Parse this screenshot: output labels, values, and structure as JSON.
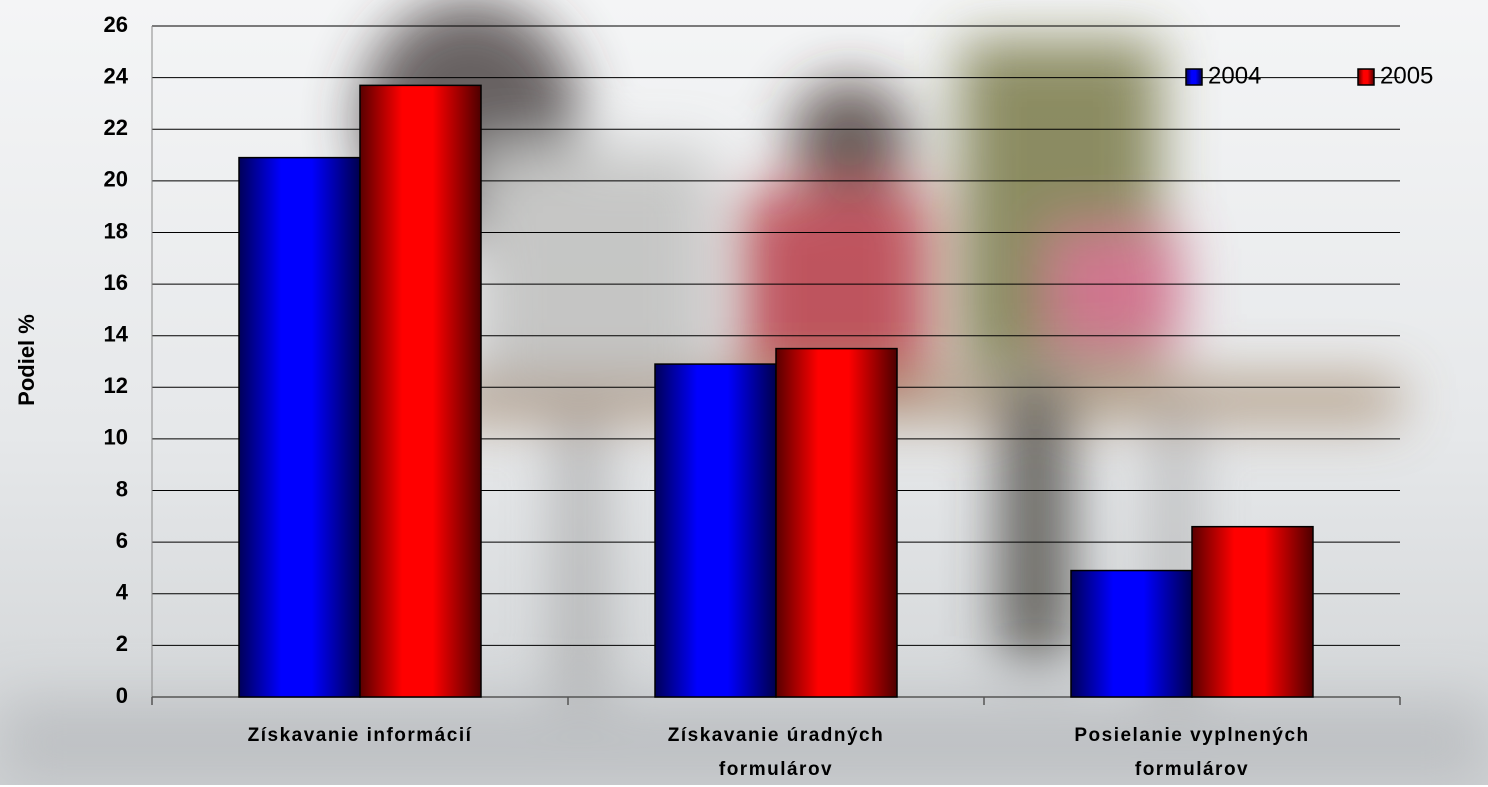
{
  "chart_data": {
    "type": "bar",
    "y_label": "Podiel %",
    "categories": [
      "Získavanie informácií",
      "Získavanie úradných formulárov",
      "Posielanie vyplnených formulárov"
    ],
    "series": [
      {
        "name": "2004",
        "color": "#0000ff",
        "values": [
          20.9,
          12.9,
          4.9
        ]
      },
      {
        "name": "2005",
        "color": "#ff0000",
        "values": [
          23.7,
          13.5,
          6.6
        ]
      }
    ],
    "ylim": [
      0,
      26
    ],
    "yticks": [
      0,
      2,
      4,
      6,
      8,
      10,
      12,
      14,
      16,
      18,
      20,
      22,
      24,
      26
    ],
    "grid": true,
    "legend": "top-right"
  }
}
